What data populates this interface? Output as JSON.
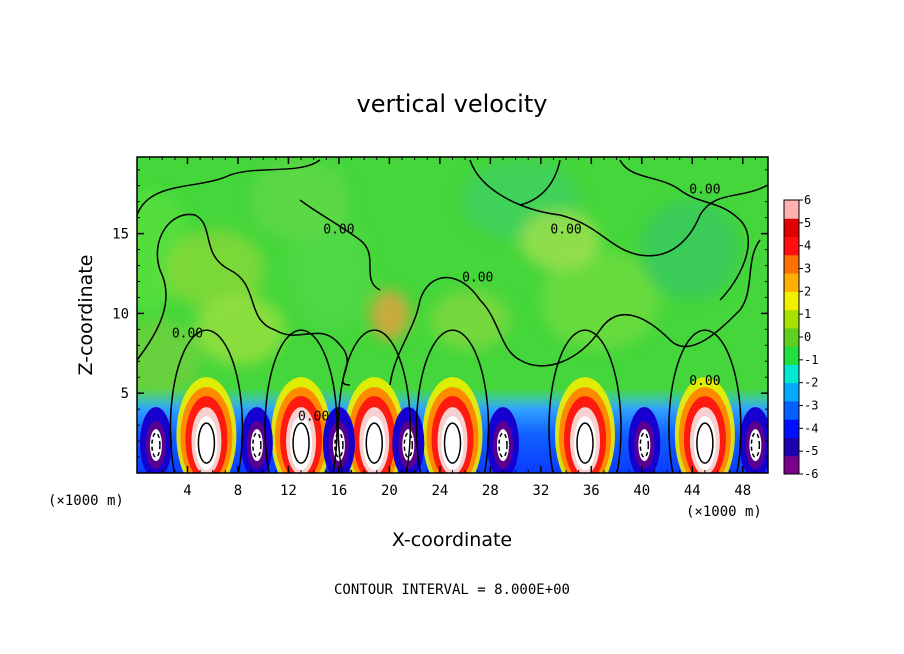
{
  "chart_data": {
    "type": "heatmap",
    "title": "vertical velocity",
    "xlabel": "X-coordinate",
    "ylabel": "Z-coordinate",
    "x_unit": "(×1000 m)",
    "xlim": [
      0,
      50
    ],
    "ylim": [
      0,
      19.8
    ],
    "xticks": [
      "4",
      "8",
      "12",
      "16",
      "20",
      "24",
      "28",
      "32",
      "36",
      "40",
      "44",
      "48"
    ],
    "yticks": [
      "5",
      "10",
      "15"
    ],
    "colorbar": {
      "min": -6,
      "max": 6,
      "labels": [
        "6",
        "5",
        "4",
        "3",
        "2",
        "1",
        "0",
        "-1",
        "-2",
        "-3",
        "-4",
        "-5",
        "-6"
      ],
      "colors": [
        "#7a008c",
        "#1a00b0",
        "#0010ff",
        "#0060ff",
        "#00a8ff",
        "#00e8d0",
        "#20e040",
        "#60d020",
        "#a8e000",
        "#f0f000",
        "#ffb000",
        "#ff7000",
        "#ff1010",
        "#e00000",
        "#ffb0b0"
      ]
    },
    "updrafts_x": [
      5.5,
      13,
      18.8,
      25,
      35.5,
      45
    ],
    "downdrafts_x": [
      1.5,
      9.5,
      16,
      21.5,
      29,
      40.2,
      49
    ],
    "contour_labels": [
      {
        "text": "0.00",
        "x": 4,
        "y": 8.5
      },
      {
        "text": "0.00",
        "x": 14,
        "y": 3.3
      },
      {
        "text": "0.00",
        "x": 16,
        "y": 15
      },
      {
        "text": "0.00",
        "x": 27,
        "y": 12
      },
      {
        "text": "0.00",
        "x": 34,
        "y": 15
      },
      {
        "text": "0.00",
        "x": 45,
        "y": 17.5
      },
      {
        "text": "0.00",
        "x": 45,
        "y": 5.5
      }
    ]
  },
  "footer": {
    "contour_interval": "CONTOUR INTERVAL = 8.000E+00"
  }
}
